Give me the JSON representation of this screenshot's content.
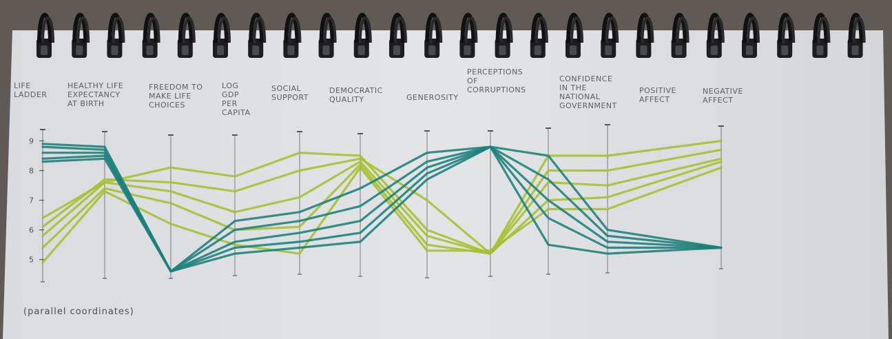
{
  "chart_data": {
    "type": "parallel-coordinates",
    "caption": "(parallel coordinates)",
    "axes": [
      "Life Ladder",
      "Healthy life expectancy at birth",
      "Freedom to make life choices",
      "Log GDP per capita",
      "Social support",
      "Democratic Quality",
      "Generosity",
      "Perceptions of corruptions",
      "Confidence in the National Government",
      "Positive affect",
      "Negative affect"
    ],
    "ticks": [
      5,
      6,
      7,
      8,
      9
    ],
    "ylim": [
      4.25,
      9.15
    ],
    "series": [
      {
        "name": "green-1",
        "color": "#a4c02e",
        "values": [
          6.4,
          7.6,
          8.1,
          7.8,
          8.6,
          8.5,
          6.0,
          5.2,
          8.5,
          8.5,
          9.0
        ]
      },
      {
        "name": "green-2",
        "color": "#a4c02e",
        "values": [
          6.1,
          7.7,
          7.6,
          7.3,
          8.0,
          8.4,
          7.0,
          5.2,
          8.0,
          8.0,
          8.7
        ]
      },
      {
        "name": "green-3",
        "color": "#a4c02e",
        "values": [
          5.8,
          7.6,
          7.3,
          6.6,
          7.1,
          8.3,
          5.8,
          5.2,
          7.6,
          7.5,
          8.4
        ]
      },
      {
        "name": "green-4",
        "color": "#a4c02e",
        "values": [
          5.4,
          7.4,
          6.9,
          6.0,
          6.1,
          8.2,
          5.5,
          5.2,
          7.0,
          7.1,
          8.3
        ]
      },
      {
        "name": "green-5",
        "color": "#a4c02e",
        "values": [
          4.9,
          7.3,
          6.2,
          5.5,
          5.2,
          8.1,
          5.3,
          5.3,
          6.7,
          6.7,
          8.1
        ]
      },
      {
        "name": "teal-1",
        "color": "#1a7f7b",
        "values": [
          8.9,
          8.8,
          4.6,
          6.3,
          6.6,
          7.4,
          8.6,
          8.8,
          8.5,
          6.0,
          5.4
        ]
      },
      {
        "name": "teal-2",
        "color": "#1a7f7b",
        "values": [
          8.8,
          8.7,
          4.6,
          6.0,
          6.3,
          6.8,
          8.3,
          8.8,
          7.7,
          5.8,
          5.4
        ]
      },
      {
        "name": "teal-3",
        "color": "#1a7f7b",
        "values": [
          8.6,
          8.6,
          4.6,
          5.6,
          5.9,
          6.3,
          8.1,
          8.8,
          7.0,
          5.6,
          5.4
        ]
      },
      {
        "name": "teal-4",
        "color": "#1a7f7b",
        "values": [
          8.4,
          8.5,
          4.6,
          5.4,
          5.6,
          5.9,
          7.9,
          8.8,
          6.4,
          5.4,
          5.4
        ]
      },
      {
        "name": "teal-5",
        "color": "#1a7f7b",
        "values": [
          8.3,
          8.4,
          4.6,
          5.2,
          5.4,
          5.6,
          7.7,
          8.8,
          5.5,
          5.2,
          5.4
        ]
      }
    ]
  }
}
